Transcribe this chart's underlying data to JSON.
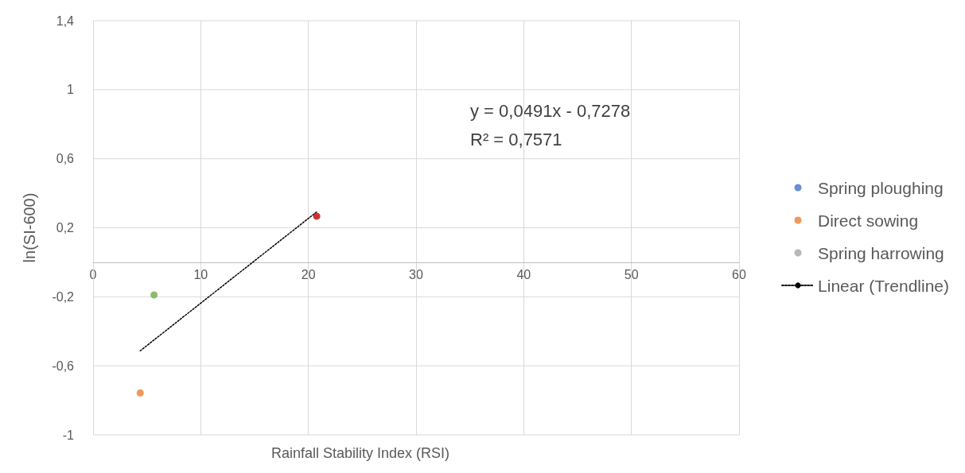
{
  "chart_data": {
    "type": "scatter",
    "xlabel": "Rainfall Stability Index (RSI)",
    "ylabel": "ln(SI-600)",
    "annotations": [
      "y = 0,0491x - 0,7278",
      "R² = 0,7571"
    ],
    "series": [
      {
        "name": "Spring ploughing",
        "color": "#4472c4"
      },
      {
        "name": "Direct sowing",
        "color": "#ed7d31",
        "x": [
          4.38
        ],
        "values": [
          -0.757
        ]
      },
      {
        "name": "Spring harrowing",
        "color": "#a5a5a5"
      },
      {
        "color": "#70ad47",
        "x": [
          5.66
        ],
        "values": [
          -0.189
        ]
      },
      {
        "color": "#c00000",
        "x": [
          20.77
        ],
        "values": [
          0.267
        ]
      },
      {
        "name": "Linear (Trendline)",
        "type": "line",
        "color": "#000000",
        "line_style": "dotted",
        "marker": "none",
        "x": [
          4.38,
          20.77
        ],
        "values": [
          -0.513,
          0.292
        ]
      }
    ],
    "xlim": [
      0,
      60
    ],
    "xticks": [
      0,
      10,
      20,
      30,
      40,
      50,
      60
    ],
    "ylim": [
      -1,
      1.4
    ],
    "yticks": [
      {
        "value": -1,
        "label": "-1"
      },
      {
        "value": -0.6,
        "label": "-0,6"
      },
      {
        "value": -0.2,
        "label": "-0,2"
      },
      {
        "value": 0.2,
        "label": "0,2"
      },
      {
        "value": 0.6,
        "label": "0,6"
      },
      {
        "value": 1,
        "label": "1"
      },
      {
        "value": 1.4,
        "label": "1,4"
      }
    ],
    "grid": true,
    "legend": "right",
    "marker": "circle"
  }
}
